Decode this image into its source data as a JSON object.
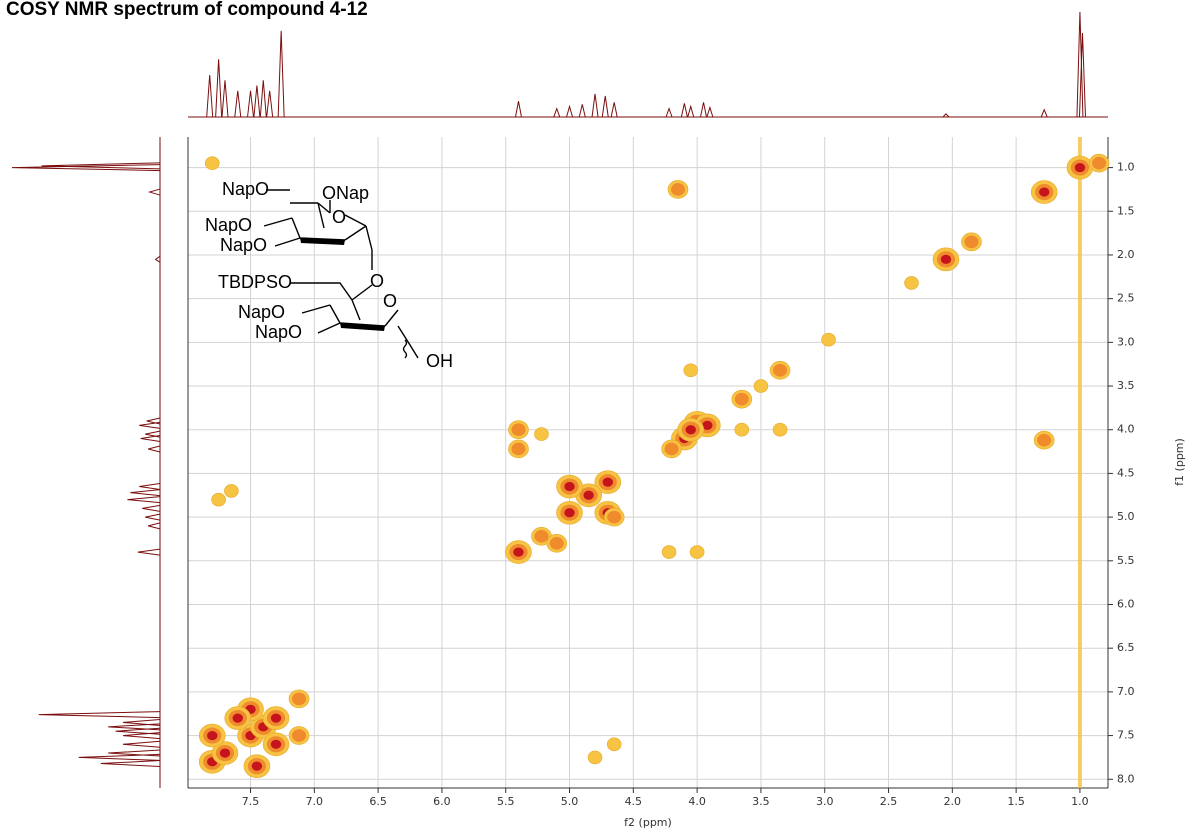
{
  "chart_data": {
    "type": "contour",
    "title": "COSY NMR spectrum of compound 4-12",
    "x_label": "f2 (ppm)",
    "y_label": "f1 (ppm)",
    "xlim": [
      7.99,
      0.78
    ],
    "ylim": [
      0.65,
      8.1
    ],
    "xticks": [
      7.5,
      {
        "value": 7,
        "label": "7.0"
      },
      6.5,
      {
        "value": 6,
        "label": "6.0"
      },
      5.5,
      {
        "value": 5,
        "label": "5.0"
      },
      4.5,
      {
        "value": 4,
        "label": "4.0"
      },
      3.5,
      {
        "value": 3,
        "label": "3.0"
      },
      2.5,
      {
        "value": 2,
        "label": "2.0"
      },
      1.5,
      {
        "value": 1,
        "label": "1.0"
      }
    ],
    "yticks": [
      {
        "value": 1,
        "label": "1.0"
      },
      1.5,
      {
        "value": 2,
        "label": "2.0"
      },
      2.5,
      {
        "value": 3,
        "label": "3.0"
      },
      3.5,
      {
        "value": 4,
        "label": "4.0"
      },
      4.5,
      {
        "value": 5,
        "label": "5.0"
      },
      5.5,
      {
        "value": 6,
        "label": "6.0"
      },
      6.5,
      {
        "value": 7,
        "label": "7.0"
      },
      7.5,
      {
        "value": 8,
        "label": "8.0"
      }
    ],
    "grid": true,
    "colors": [
      "#f6c343",
      "#ef8a2d",
      "#c5141c"
    ],
    "projection_color": "#7a0e0e",
    "noise_ridge_x": 1.0,
    "peaks": {
      "x": [
        1.0,
        0.85,
        1.28,
        2.05,
        1.85,
        2.32,
        3.35,
        3.65,
        3.5,
        4.0,
        4.1,
        4.2,
        3.92,
        4.05,
        4.7,
        4.85,
        5.0,
        5.0,
        4.7,
        5.4,
        5.22,
        5.1,
        7.8,
        7.7,
        7.5,
        7.4,
        7.3,
        7.12,
        7.5,
        7.3,
        7.6,
        7.12,
        7.8,
        7.45,
        4.15,
        1.28,
        5.4,
        5.4,
        5.22,
        4.22,
        4.0,
        4.05,
        3.35,
        3.65,
        4.65,
        7.75,
        7.65,
        4.8,
        4.65,
        2.97,
        7.8
      ],
      "y": [
        1.0,
        0.95,
        1.28,
        2.05,
        1.85,
        2.32,
        3.32,
        3.65,
        3.5,
        3.92,
        4.1,
        4.22,
        3.95,
        4.0,
        4.6,
        4.75,
        4.65,
        4.95,
        4.95,
        5.4,
        5.22,
        5.3,
        7.8,
        7.7,
        7.5,
        7.4,
        7.3,
        7.08,
        7.2,
        7.6,
        7.3,
        7.5,
        7.5,
        7.85,
        1.25,
        4.12,
        4.0,
        4.22,
        4.05,
        5.4,
        5.4,
        3.32,
        4.0,
        4.0,
        5.0,
        4.8,
        4.7,
        7.75,
        7.6,
        2.97,
        0.95
      ],
      "intensity": [
        3,
        2,
        3,
        3,
        2,
        1,
        2,
        2,
        1,
        3,
        3,
        2,
        3,
        3,
        3,
        3,
        3,
        3,
        3,
        3,
        2,
        2,
        3,
        3,
        3,
        3,
        3,
        2,
        3,
        3,
        3,
        2,
        3,
        3,
        2,
        2,
        2,
        2,
        1,
        1,
        1,
        1,
        1,
        1,
        2,
        1,
        1,
        1,
        1,
        1,
        1
      ]
    },
    "projection": {
      "ppm": [
        7.82,
        7.75,
        7.7,
        7.6,
        7.5,
        7.45,
        7.4,
        7.35,
        7.26,
        5.4,
        5.1,
        5.0,
        4.9,
        4.8,
        4.72,
        4.65,
        4.22,
        4.1,
        4.05,
        3.95,
        3.9,
        2.05,
        1.28,
        1.0,
        0.98
      ],
      "intensity": [
        0.4,
        0.55,
        0.35,
        0.25,
        0.25,
        0.3,
        0.35,
        0.25,
        0.82,
        0.15,
        0.08,
        0.1,
        0.12,
        0.22,
        0.2,
        0.14,
        0.08,
        0.13,
        0.1,
        0.14,
        0.09,
        0.03,
        0.07,
        1.0,
        0.8
      ]
    },
    "structure_labels": [
      "NapO",
      "ONap",
      "O",
      "NapO",
      "NapO",
      "O",
      "TBDPSO",
      "O",
      "NapO",
      "NapO",
      "OH"
    ]
  }
}
